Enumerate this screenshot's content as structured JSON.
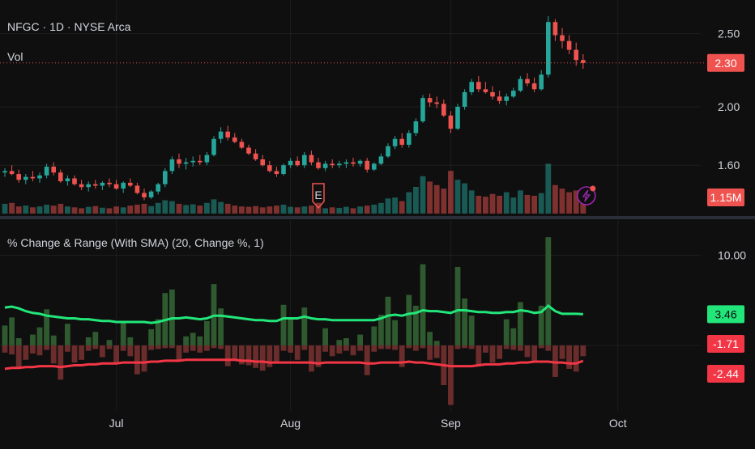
{
  "header": {
    "symbol_line": "NFGC · 1D · NYSE Arca",
    "volume_label": "Vol",
    "earnings_marker": "E",
    "indicator_title": "% Change & Range (With SMA) (20, Change %, 1)"
  },
  "colors": {
    "background": "#0f0f0f",
    "up": "#26a69a",
    "down": "#ef5350",
    "grid": "#1e1e1e",
    "pos_sma": "#22e67a",
    "neg_sma": "#f23645",
    "pos_bar": "#2f5a2f",
    "neg_bar": "#6b2c2c",
    "divider": "#2a2e39",
    "event_icon": "#9c27b0"
  },
  "chart_data": [
    {
      "type": "candlestick",
      "title": "",
      "x_axis_labels": [
        "Jul",
        "Aug",
        "Sep",
        "Oct"
      ],
      "x_axis_positions": [
        16,
        41,
        64,
        88
      ],
      "y_ticks": [
        1.6,
        2.0,
        2.5
      ],
      "ylim": [
        1.28,
        2.62
      ],
      "last_price_label": "2.30",
      "last_price": 2.3,
      "earnings_index": 45,
      "candles": [
        [
          1.55,
          1.58,
          1.52,
          1.56
        ],
        [
          1.56,
          1.6,
          1.53,
          1.54
        ],
        [
          1.54,
          1.57,
          1.48,
          1.5
        ],
        [
          1.5,
          1.54,
          1.47,
          1.52
        ],
        [
          1.52,
          1.56,
          1.49,
          1.51
        ],
        [
          1.51,
          1.55,
          1.48,
          1.53
        ],
        [
          1.53,
          1.61,
          1.51,
          1.59
        ],
        [
          1.59,
          1.62,
          1.53,
          1.55
        ],
        [
          1.55,
          1.57,
          1.48,
          1.49
        ],
        [
          1.49,
          1.53,
          1.46,
          1.51
        ],
        [
          1.51,
          1.53,
          1.46,
          1.47
        ],
        [
          1.47,
          1.5,
          1.43,
          1.45
        ],
        [
          1.45,
          1.49,
          1.42,
          1.47
        ],
        [
          1.47,
          1.5,
          1.44,
          1.46
        ],
        [
          1.46,
          1.49,
          1.43,
          1.48
        ],
        [
          1.48,
          1.51,
          1.45,
          1.47
        ],
        [
          1.47,
          1.5,
          1.43,
          1.44
        ],
        [
          1.44,
          1.49,
          1.41,
          1.48
        ],
        [
          1.48,
          1.51,
          1.45,
          1.46
        ],
        [
          1.46,
          1.48,
          1.4,
          1.41
        ],
        [
          1.41,
          1.44,
          1.36,
          1.38
        ],
        [
          1.38,
          1.43,
          1.37,
          1.42
        ],
        [
          1.42,
          1.48,
          1.4,
          1.47
        ],
        [
          1.47,
          1.58,
          1.45,
          1.56
        ],
        [
          1.56,
          1.66,
          1.54,
          1.64
        ],
        [
          1.64,
          1.68,
          1.58,
          1.61
        ],
        [
          1.61,
          1.65,
          1.57,
          1.62
        ],
        [
          1.62,
          1.66,
          1.59,
          1.63
        ],
        [
          1.63,
          1.67,
          1.6,
          1.62
        ],
        [
          1.62,
          1.69,
          1.6,
          1.67
        ],
        [
          1.67,
          1.8,
          1.66,
          1.78
        ],
        [
          1.78,
          1.86,
          1.75,
          1.83
        ],
        [
          1.83,
          1.87,
          1.77,
          1.79
        ],
        [
          1.79,
          1.82,
          1.75,
          1.76
        ],
        [
          1.76,
          1.78,
          1.71,
          1.72
        ],
        [
          1.72,
          1.74,
          1.67,
          1.68
        ],
        [
          1.68,
          1.71,
          1.63,
          1.64
        ],
        [
          1.64,
          1.67,
          1.59,
          1.6
        ],
        [
          1.6,
          1.63,
          1.55,
          1.56
        ],
        [
          1.56,
          1.59,
          1.52,
          1.54
        ],
        [
          1.54,
          1.61,
          1.53,
          1.6
        ],
        [
          1.6,
          1.65,
          1.58,
          1.63
        ],
        [
          1.63,
          1.66,
          1.59,
          1.6
        ],
        [
          1.6,
          1.69,
          1.58,
          1.67
        ],
        [
          1.67,
          1.7,
          1.6,
          1.62
        ],
        [
          1.62,
          1.65,
          1.57,
          1.58
        ],
        [
          1.58,
          1.63,
          1.56,
          1.61
        ],
        [
          1.61,
          1.64,
          1.58,
          1.6
        ],
        [
          1.6,
          1.63,
          1.58,
          1.61
        ],
        [
          1.61,
          1.64,
          1.58,
          1.62
        ],
        [
          1.62,
          1.65,
          1.59,
          1.61
        ],
        [
          1.61,
          1.64,
          1.59,
          1.63
        ],
        [
          1.63,
          1.65,
          1.55,
          1.57
        ],
        [
          1.57,
          1.62,
          1.56,
          1.61
        ],
        [
          1.61,
          1.68,
          1.6,
          1.66
        ],
        [
          1.66,
          1.75,
          1.65,
          1.73
        ],
        [
          1.73,
          1.8,
          1.71,
          1.78
        ],
        [
          1.78,
          1.82,
          1.72,
          1.74
        ],
        [
          1.74,
          1.84,
          1.72,
          1.82
        ],
        [
          1.82,
          1.92,
          1.8,
          1.9
        ],
        [
          1.9,
          2.08,
          1.89,
          2.06
        ],
        [
          2.06,
          2.09,
          2.0,
          2.03
        ],
        [
          2.03,
          2.07,
          1.99,
          2.02
        ],
        [
          2.02,
          2.05,
          1.93,
          1.94
        ],
        [
          1.94,
          1.97,
          1.82,
          1.85
        ],
        [
          1.85,
          2.02,
          1.84,
          2.0
        ],
        [
          2.0,
          2.12,
          1.98,
          2.1
        ],
        [
          2.1,
          2.19,
          2.08,
          2.17
        ],
        [
          2.17,
          2.21,
          2.1,
          2.12
        ],
        [
          2.12,
          2.17,
          2.09,
          2.1
        ],
        [
          2.1,
          2.14,
          2.05,
          2.07
        ],
        [
          2.07,
          2.11,
          2.02,
          2.04
        ],
        [
          2.04,
          2.09,
          2.01,
          2.07
        ],
        [
          2.07,
          2.13,
          2.06,
          2.11
        ],
        [
          2.11,
          2.21,
          2.1,
          2.19
        ],
        [
          2.19,
          2.23,
          2.14,
          2.16
        ],
        [
          2.16,
          2.2,
          2.1,
          2.12
        ],
        [
          2.12,
          2.25,
          2.11,
          2.22
        ],
        [
          2.22,
          2.62,
          2.2,
          2.58
        ],
        [
          2.58,
          2.6,
          2.45,
          2.49
        ],
        [
          2.49,
          2.54,
          2.4,
          2.45
        ],
        [
          2.45,
          2.49,
          2.36,
          2.39
        ],
        [
          2.39,
          2.44,
          2.28,
          2.32
        ],
        [
          2.32,
          2.36,
          2.26,
          2.3
        ]
      ],
      "volume": {
        "last_label": "1.15M",
        "values": [
          0.55,
          0.6,
          0.4,
          0.45,
          0.35,
          0.4,
          0.5,
          0.45,
          0.55,
          0.4,
          0.35,
          0.3,
          0.38,
          0.42,
          0.33,
          0.3,
          0.4,
          0.35,
          0.45,
          0.5,
          0.55,
          0.42,
          0.6,
          0.75,
          0.7,
          0.55,
          0.48,
          0.52,
          0.45,
          0.6,
          0.8,
          0.65,
          0.55,
          0.45,
          0.4,
          0.38,
          0.42,
          0.35,
          0.4,
          0.45,
          0.5,
          0.38,
          0.35,
          0.4,
          0.45,
          0.6,
          0.3,
          0.35,
          0.32,
          0.38,
          0.3,
          0.4,
          0.45,
          0.5,
          0.6,
          0.85,
          0.9,
          0.7,
          1.2,
          1.5,
          2.1,
          1.8,
          1.6,
          1.4,
          2.4,
          1.9,
          1.7,
          1.3,
          1.0,
          0.95,
          1.1,
          1.0,
          1.2,
          0.9,
          1.3,
          1.05,
          1.0,
          1.15,
          2.8,
          1.6,
          1.4,
          1.2,
          1.3,
          1.15
        ],
        "max": 3.0
      }
    },
    {
      "type": "bar+line",
      "title": "% Change & Range (With SMA) (20, Change %, 1)",
      "y_ticks": [
        10.0,
        0.0
      ],
      "ylim": [
        -7.0,
        13.0
      ],
      "labels": {
        "pos_sma": "3.46",
        "neg_sma": "-1.71",
        "neg_extra": "-2.44"
      },
      "pos_bars": [
        2.2,
        3.1,
        0.8,
        0.0,
        1.2,
        2.0,
        4.0,
        1.1,
        0.0,
        2.4,
        0.0,
        0.0,
        0.9,
        1.5,
        0.0,
        0.6,
        0.0,
        2.6,
        0.9,
        0.0,
        0.0,
        1.8,
        2.9,
        5.8,
        6.2,
        0.0,
        1.0,
        1.4,
        1.0,
        2.7,
        6.8,
        4.1,
        0.0,
        0.0,
        0.0,
        0.0,
        0.0,
        0.0,
        0.0,
        0.0,
        4.5,
        3.0,
        0.0,
        4.2,
        0.0,
        0.0,
        1.9,
        0.0,
        0.6,
        0.8,
        0.0,
        1.2,
        0.0,
        2.1,
        3.4,
        5.4,
        2.8,
        0.0,
        5.6,
        4.4,
        9.0,
        1.5,
        0.5,
        0.0,
        0.0,
        8.7,
        5.2,
        3.3,
        0.0,
        0.0,
        0.0,
        0.0,
        2.9,
        1.9,
        4.8,
        0.0,
        0.0,
        4.4,
        12.0,
        0.0,
        0.0,
        0.0,
        0.0,
        0.0
      ],
      "neg_bars": [
        -0.8,
        -1.0,
        -2.4,
        -1.6,
        -0.9,
        -1.1,
        -0.5,
        -2.0,
        -3.8,
        -0.7,
        -1.9,
        -1.6,
        -0.6,
        -0.4,
        -1.3,
        -0.4,
        -1.9,
        -0.6,
        -1.2,
        -3.2,
        -2.9,
        -0.5,
        -0.4,
        -0.3,
        -0.3,
        -1.7,
        -0.8,
        -0.6,
        -0.8,
        -0.6,
        -0.3,
        -0.4,
        -2.3,
        -1.6,
        -2.1,
        -2.2,
        -2.5,
        -2.8,
        -2.4,
        -1.9,
        -0.6,
        -0.8,
        -1.6,
        -0.5,
        -2.9,
        -2.4,
        -0.7,
        -1.2,
        -0.9,
        -0.6,
        -1.1,
        -0.6,
        -3.3,
        -0.7,
        -0.4,
        -0.4,
        -0.5,
        -2.4,
        -0.3,
        -0.6,
        -0.3,
        -1.6,
        -1.4,
        -4.4,
        -6.6,
        -0.4,
        -0.3,
        -0.4,
        -2.3,
        -0.8,
        -1.9,
        -1.5,
        -0.4,
        -0.5,
        -0.6,
        -1.3,
        -1.7,
        -0.3,
        -0.6,
        -3.5,
        -1.5,
        -2.6,
        -2.9,
        -1.2
      ],
      "pos_sma": [
        4.2,
        4.3,
        4.1,
        3.8,
        3.6,
        3.5,
        3.3,
        3.2,
        3.1,
        3.0,
        3.0,
        2.9,
        2.9,
        2.8,
        2.7,
        2.7,
        2.6,
        2.6,
        2.6,
        2.6,
        2.6,
        2.5,
        2.6,
        2.8,
        3.0,
        3.0,
        3.1,
        3.0,
        2.9,
        3.0,
        3.3,
        3.3,
        3.2,
        3.1,
        3.0,
        2.9,
        2.8,
        2.8,
        2.7,
        2.7,
        3.0,
        3.0,
        3.0,
        3.2,
        3.0,
        2.9,
        2.9,
        2.8,
        2.8,
        2.8,
        2.8,
        2.8,
        2.8,
        2.8,
        3.0,
        3.3,
        3.4,
        3.3,
        3.5,
        3.6,
        3.9,
        3.8,
        3.8,
        3.7,
        3.6,
        3.9,
        3.9,
        3.8,
        3.7,
        3.7,
        3.6,
        3.6,
        3.7,
        3.7,
        3.9,
        3.8,
        3.6,
        3.7,
        4.4,
        3.8,
        3.5,
        3.5,
        3.5,
        3.46
      ],
      "neg_sma": [
        -2.6,
        -2.5,
        -2.5,
        -2.4,
        -2.4,
        -2.3,
        -2.3,
        -2.3,
        -2.4,
        -2.3,
        -2.2,
        -2.2,
        -2.1,
        -2.1,
        -2.0,
        -2.0,
        -2.0,
        -1.9,
        -1.9,
        -1.9,
        -1.9,
        -1.8,
        -1.8,
        -1.7,
        -1.7,
        -1.7,
        -1.6,
        -1.6,
        -1.6,
        -1.6,
        -1.6,
        -1.6,
        -1.6,
        -1.6,
        -1.7,
        -1.7,
        -1.8,
        -1.8,
        -1.9,
        -1.9,
        -1.9,
        -1.9,
        -1.9,
        -1.9,
        -1.9,
        -2.0,
        -1.9,
        -1.9,
        -1.9,
        -1.9,
        -1.9,
        -1.9,
        -2.0,
        -2.0,
        -1.9,
        -1.9,
        -1.9,
        -1.9,
        -1.8,
        -1.9,
        -1.9,
        -2.0,
        -2.1,
        -2.2,
        -2.3,
        -2.3,
        -2.3,
        -2.3,
        -2.2,
        -2.1,
        -2.1,
        -2.1,
        -2.0,
        -2.0,
        -1.9,
        -1.9,
        -1.8,
        -1.8,
        -1.8,
        -1.9,
        -1.9,
        -2.0,
        -2.0,
        -1.71
      ]
    }
  ]
}
